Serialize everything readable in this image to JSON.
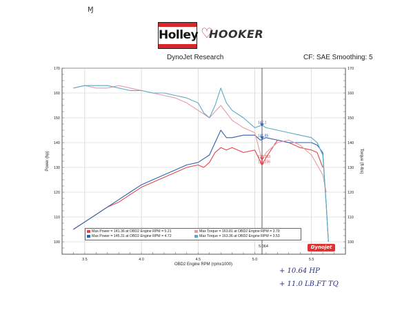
{
  "header": {
    "title": "DynoJet Research",
    "correction": "CF: SAE Smoothing: 5",
    "logo_holley": "Holley",
    "logo_hooker": "HOOKER"
  },
  "branding": {
    "dynojet": "Dynojet"
  },
  "handwritten": {
    "hp_gain": "+ 10.64 HP",
    "tq_gain": "+ 11.0 LB.FT TQ"
  },
  "colors": {
    "red": "#e0474c",
    "pink": "#e79aa2",
    "blue": "#2e5fb0",
    "lightblue": "#5aa9c8"
  },
  "chart_data": {
    "type": "line",
    "xlabel": "OBD2 Engine RPM (rpmx1000)",
    "ylabel_left": "Power (hp)",
    "ylabel_right": "Torque (ft-lbs)",
    "xlim": [
      3.3,
      5.8
    ],
    "ylim": [
      95,
      170
    ],
    "xticks": [
      "3.5",
      "4.0",
      "4.5",
      "5.0",
      "5.5"
    ],
    "yticks": [
      "100",
      "110",
      "120",
      "130",
      "140",
      "150",
      "160",
      "170"
    ],
    "cursor": {
      "x": 5.064,
      "label": "5.064"
    },
    "cursor_values": [
      "147.1",
      "141.85",
      "133.393",
      "131.236"
    ],
    "legend": [
      {
        "text": "Max Power = 141.36 at OBD2 Engine RPM = 5.21",
        "color": "red"
      },
      {
        "text": "Max Torque = 163.81 at OBD2 Engine RPM = 3.79",
        "color": "pink"
      },
      {
        "text": "Max Power = 145.31 at OBD2 Engine RPM = 4.72",
        "color": "blue"
      },
      {
        "text": "Max Torque = 163.36 at OBD2 Engine RPM = 3.53",
        "color": "lightblue"
      }
    ],
    "series": [
      {
        "color": "red",
        "x": [
          3.4,
          3.5,
          3.6,
          3.7,
          3.8,
          3.9,
          4.0,
          4.1,
          4.2,
          4.3,
          4.4,
          4.5,
          4.55,
          4.6,
          4.65,
          4.7,
          4.75,
          4.8,
          4.9,
          5.0,
          5.064,
          5.1,
          5.2,
          5.3,
          5.4,
          5.5,
          5.55,
          5.6
        ],
        "y": [
          105,
          108,
          111,
          114,
          116,
          119,
          122,
          124,
          126,
          128,
          130,
          131,
          130,
          132,
          136,
          138,
          137,
          138,
          136,
          137,
          131,
          134,
          141,
          140,
          138,
          137,
          136,
          130
        ]
      },
      {
        "color": "blue",
        "x": [
          3.4,
          3.5,
          3.6,
          3.7,
          3.8,
          3.9,
          4.0,
          4.1,
          4.2,
          4.3,
          4.4,
          4.5,
          4.6,
          4.65,
          4.7,
          4.75,
          4.8,
          4.9,
          5.0,
          5.05,
          5.1,
          5.2,
          5.3,
          5.4,
          5.5,
          5.55,
          5.6,
          5.63,
          5.65
        ],
        "y": [
          105,
          108,
          111,
          114,
          117,
          120,
          123,
          125,
          127,
          129,
          131,
          132,
          135,
          140,
          145,
          142,
          142,
          143,
          143,
          141,
          142,
          141,
          140,
          140,
          140,
          139,
          136,
          115,
          100
        ]
      },
      {
        "color": "pink",
        "x": [
          3.4,
          3.5,
          3.6,
          3.7,
          3.8,
          3.9,
          4.0,
          4.1,
          4.2,
          4.3,
          4.4,
          4.5,
          4.6,
          4.7,
          4.8,
          4.9,
          5.0,
          5.064,
          5.1,
          5.2,
          5.3,
          5.4,
          5.5,
          5.55,
          5.6,
          5.63
        ],
        "y": [
          162,
          163,
          162,
          162,
          163,
          162,
          161,
          160,
          159,
          158,
          156,
          153,
          150,
          155,
          149,
          146,
          144,
          133,
          136,
          140,
          141,
          139,
          135,
          131,
          127,
          120
        ]
      },
      {
        "color": "lightblue",
        "x": [
          3.4,
          3.5,
          3.6,
          3.7,
          3.8,
          3.9,
          4.0,
          4.1,
          4.2,
          4.3,
          4.4,
          4.5,
          4.55,
          4.6,
          4.65,
          4.7,
          4.75,
          4.8,
          4.9,
          5.0,
          5.064,
          5.1,
          5.2,
          5.3,
          5.4,
          5.5,
          5.55,
          5.6,
          5.63,
          5.65
        ],
        "y": [
          162,
          163,
          163,
          163,
          162,
          161,
          161,
          160,
          160,
          159,
          158,
          156,
          152,
          150,
          155,
          162,
          156,
          153,
          150,
          146,
          147,
          146,
          145,
          144,
          143,
          142,
          140,
          135,
          115,
          100
        ]
      }
    ]
  }
}
